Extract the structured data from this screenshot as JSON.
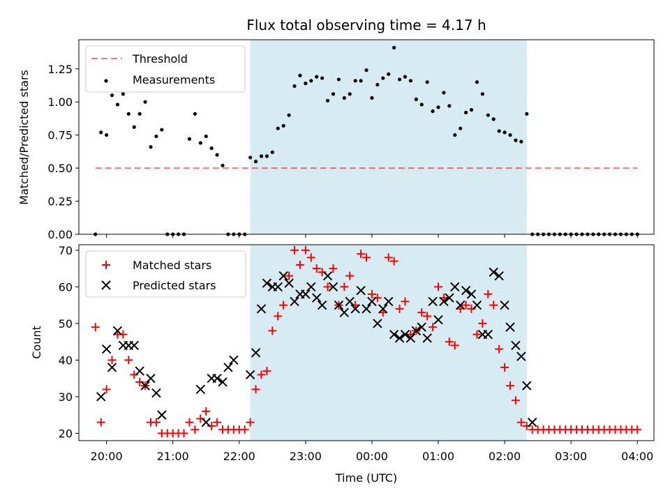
{
  "chart_data": [
    {
      "type": "scatter",
      "title": "Flux total observing time = 4.17 h",
      "ylabel": "Matched/Predicted stars",
      "xlabel": "",
      "ylim": [
        0,
        1.47
      ],
      "xlim": [
        "19:35",
        "04:15"
      ],
      "shaded_interval": [
        "22:10",
        "02:20"
      ],
      "y_ticks": [
        "0.00",
        "0.25",
        "0.50",
        "0.75",
        "1.00",
        "1.25"
      ],
      "threshold": 0.5,
      "threshold_x": [
        "19:50",
        "04:00"
      ],
      "legend": {
        "placement": "upper-left",
        "entries": [
          "Threshold",
          "Measurements"
        ]
      },
      "series": [
        {
          "name": "Measurements",
          "marker": "point",
          "color": "#000000",
          "x": [
            "19:50",
            "19:55",
            "20:00",
            "20:05",
            "20:10",
            "20:15",
            "20:20",
            "20:25",
            "20:30",
            "20:35",
            "20:40",
            "20:45",
            "20:50",
            "20:55",
            "21:00",
            "21:05",
            "21:10",
            "21:15",
            "21:20",
            "21:25",
            "21:30",
            "21:35",
            "21:40",
            "21:45",
            "21:50",
            "21:55",
            "22:00",
            "22:05",
            "22:10",
            "22:15",
            "22:20",
            "22:25",
            "22:30",
            "22:35",
            "22:40",
            "22:45",
            "22:50",
            "22:55",
            "23:00",
            "23:05",
            "23:10",
            "23:15",
            "23:20",
            "23:25",
            "23:30",
            "23:35",
            "23:40",
            "23:45",
            "23:50",
            "23:55",
            "00:00",
            "00:05",
            "00:10",
            "00:15",
            "00:20",
            "00:25",
            "00:30",
            "00:35",
            "00:40",
            "00:45",
            "00:50",
            "00:55",
            "01:00",
            "01:05",
            "01:10",
            "01:15",
            "01:20",
            "01:25",
            "01:30",
            "01:35",
            "01:40",
            "01:45",
            "01:50",
            "01:55",
            "02:00",
            "02:05",
            "02:10",
            "02:15",
            "02:20",
            "02:25",
            "02:30",
            "02:35",
            "02:40",
            "02:45",
            "02:50",
            "02:55",
            "03:00",
            "03:05",
            "03:10",
            "03:15",
            "03:20",
            "03:25",
            "03:30",
            "03:35",
            "03:40",
            "03:45",
            "03:50",
            "03:55",
            "04:00"
          ],
          "y": [
            0.0,
            0.77,
            0.75,
            1.05,
            0.98,
            1.06,
            0.91,
            0.81,
            0.91,
            1.0,
            0.66,
            0.74,
            0.79,
            0.0,
            0.0,
            0.0,
            0.0,
            0.72,
            0.91,
            0.69,
            0.74,
            0.65,
            0.6,
            0.52,
            0.0,
            0.0,
            0.0,
            0.0,
            0.58,
            0.55,
            0.59,
            0.59,
            0.62,
            0.8,
            0.82,
            0.9,
            1.12,
            1.2,
            1.14,
            1.16,
            1.19,
            1.18,
            1.01,
            1.06,
            1.17,
            1.03,
            1.06,
            1.16,
            1.16,
            1.24,
            1.03,
            1.13,
            1.18,
            1.21,
            1.41,
            1.17,
            1.19,
            1.16,
            1.02,
            0.98,
            1.15,
            0.93,
            0.96,
            1.07,
            0.97,
            0.75,
            0.8,
            0.92,
            0.94,
            1.15,
            1.06,
            0.9,
            0.87,
            0.78,
            0.77,
            0.75,
            0.71,
            0.7,
            0.91,
            0.0,
            0.0,
            0.0,
            0.0,
            0.0,
            0.0,
            0.0,
            0.0,
            0.0,
            0.0,
            0.0,
            0.0,
            0.0,
            0.0,
            0.0,
            0.0,
            0.0,
            0.0,
            0.0,
            0.0
          ]
        }
      ]
    },
    {
      "type": "scatter",
      "xlabel": "Time (UTC)",
      "ylabel": "Count",
      "ylim": [
        18,
        71.5
      ],
      "xlim": [
        "19:35",
        "04:15"
      ],
      "shaded_interval": [
        "22:10",
        "02:20"
      ],
      "x_ticks": [
        "20:00",
        "21:00",
        "22:00",
        "23:00",
        "00:00",
        "01:00",
        "02:00",
        "03:00",
        "04:00"
      ],
      "y_ticks": [
        "20",
        "30",
        "40",
        "50",
        "60",
        "70"
      ],
      "legend": {
        "placement": "upper-left",
        "entries": [
          "Matched stars",
          "Predicted stars"
        ]
      },
      "series": [
        {
          "name": "Matched stars",
          "marker": "plus",
          "color": "#ff0000",
          "x": [
            "19:50",
            "19:55",
            "20:00",
            "20:05",
            "20:10",
            "20:15",
            "20:20",
            "20:25",
            "20:30",
            "20:35",
            "20:40",
            "20:45",
            "20:50",
            "20:55",
            "21:00",
            "21:05",
            "21:10",
            "21:15",
            "21:20",
            "21:25",
            "21:30",
            "21:35",
            "21:40",
            "21:45",
            "21:50",
            "21:55",
            "22:00",
            "22:05",
            "22:10",
            "22:15",
            "22:20",
            "22:25",
            "22:30",
            "22:35",
            "22:40",
            "22:45",
            "22:50",
            "22:55",
            "23:00",
            "23:05",
            "23:10",
            "23:15",
            "23:20",
            "23:25",
            "23:30",
            "23:35",
            "23:40",
            "23:45",
            "23:50",
            "23:55",
            "00:00",
            "00:05",
            "00:10",
            "00:15",
            "00:20",
            "00:25",
            "00:30",
            "00:35",
            "00:40",
            "00:45",
            "00:50",
            "00:55",
            "01:00",
            "01:05",
            "01:10",
            "01:15",
            "01:20",
            "01:25",
            "01:30",
            "01:35",
            "01:40",
            "01:45",
            "01:50",
            "01:55",
            "02:00",
            "02:05",
            "02:10",
            "02:15",
            "02:20",
            "02:25",
            "02:30",
            "02:35",
            "02:40",
            "02:45",
            "02:50",
            "02:55",
            "03:00",
            "03:05",
            "03:10",
            "03:15",
            "03:20",
            "03:25",
            "03:30",
            "03:35",
            "03:40",
            "03:45",
            "03:50",
            "03:55",
            "04:00"
          ],
          "y": [
            49,
            23,
            32,
            40,
            47,
            47,
            40,
            36,
            34,
            33,
            23,
            23,
            20,
            20,
            20,
            20,
            20,
            23,
            21,
            24,
            26,
            22,
            23,
            21,
            21,
            21,
            21,
            21,
            23,
            32,
            36,
            37,
            48,
            52,
            55,
            63,
            70,
            66,
            70,
            68,
            65,
            64,
            60,
            65,
            55,
            60,
            63,
            55,
            69,
            68,
            58,
            57,
            53,
            68,
            67,
            54,
            56,
            47,
            48,
            53,
            52,
            49,
            60,
            57,
            45,
            44,
            54,
            55,
            54,
            47,
            50,
            58,
            55,
            43,
            38,
            33,
            29,
            23,
            22,
            21,
            21,
            21,
            21,
            21,
            21,
            21,
            21,
            21,
            21,
            21,
            21,
            21,
            21,
            21,
            21,
            21,
            21,
            21,
            21
          ]
        },
        {
          "name": "Predicted stars",
          "marker": "x",
          "color": "#000000",
          "x": [
            "19:55",
            "20:00",
            "20:05",
            "20:10",
            "20:15",
            "20:20",
            "20:25",
            "20:30",
            "20:35",
            "20:40",
            "20:45",
            "20:50",
            "21:25",
            "21:30",
            "21:35",
            "21:40",
            "21:45",
            "21:50",
            "21:55",
            "22:10",
            "22:15",
            "22:20",
            "22:25",
            "22:30",
            "22:35",
            "22:40",
            "22:45",
            "22:50",
            "22:55",
            "23:00",
            "23:05",
            "23:10",
            "23:15",
            "23:20",
            "23:25",
            "23:30",
            "23:35",
            "23:40",
            "23:45",
            "23:50",
            "23:55",
            "00:00",
            "00:05",
            "00:10",
            "00:15",
            "00:20",
            "00:25",
            "00:30",
            "00:35",
            "00:40",
            "00:45",
            "00:50",
            "00:55",
            "01:00",
            "01:05",
            "01:10",
            "01:15",
            "01:20",
            "01:25",
            "01:30",
            "01:35",
            "01:40",
            "01:45",
            "01:50",
            "01:55",
            "02:00",
            "02:05",
            "02:10",
            "02:15",
            "02:20",
            "02:25"
          ],
          "y": [
            30,
            43,
            38,
            48,
            44,
            44,
            44,
            37,
            33,
            35,
            31,
            25,
            32,
            23,
            35,
            35,
            34,
            38,
            40,
            36,
            42,
            54,
            61,
            60,
            60,
            63,
            61,
            56,
            58,
            58,
            60,
            57,
            55,
            63,
            60,
            55,
            53,
            56,
            54,
            59,
            54,
            56,
            50,
            54,
            56,
            47,
            46,
            47,
            46,
            48,
            49,
            46,
            56,
            51,
            56,
            57,
            60,
            55,
            59,
            58,
            55,
            47,
            47,
            64,
            63,
            55,
            49,
            44,
            41,
            33,
            23
          ]
        }
      ]
    }
  ]
}
